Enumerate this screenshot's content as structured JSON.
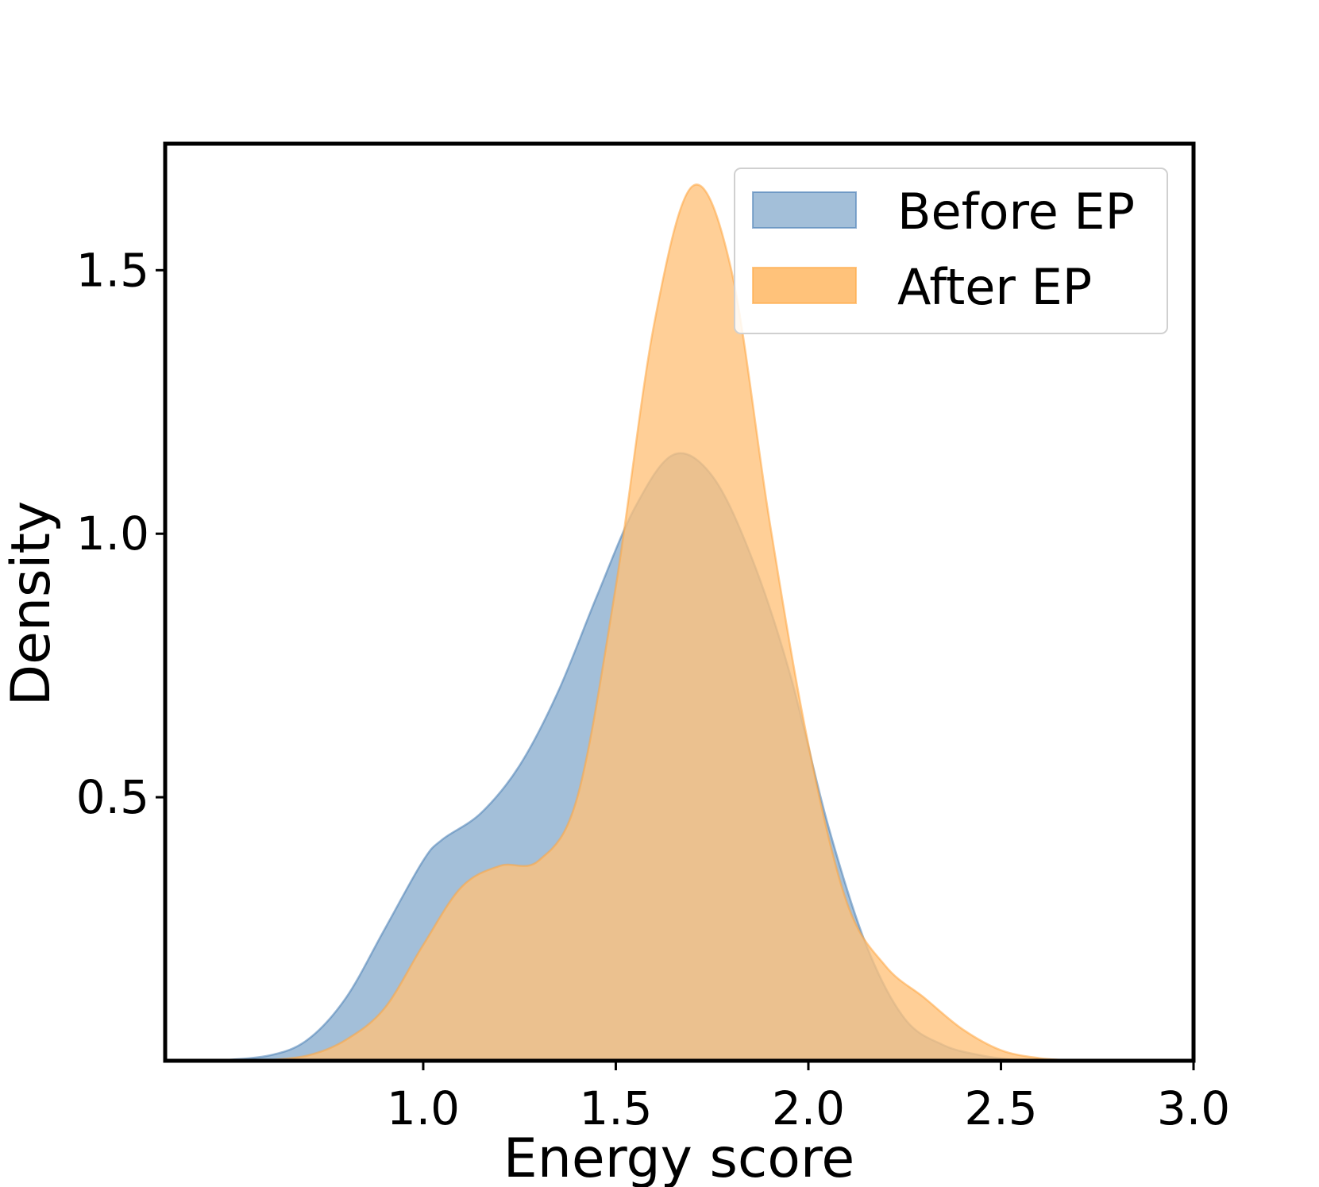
{
  "chart_data": {
    "type": "area",
    "xlabel": "Energy score",
    "ylabel": "Density",
    "xlim": [
      0.33,
      3.0
    ],
    "ylim": [
      0.0,
      1.74
    ],
    "xticks": [
      1.0,
      1.5,
      2.0,
      2.5,
      3.0
    ],
    "xtick_labels": [
      "1.0",
      "1.5",
      "2.0",
      "2.5",
      "3.0"
    ],
    "yticks": [
      0.5,
      1.0,
      1.5
    ],
    "ytick_labels": [
      "0.5",
      "1.0",
      "1.5"
    ],
    "legend_position": "top-right",
    "grid": false,
    "series": [
      {
        "name": "Before EP",
        "color": "#4a7fb5",
        "fill_color": "#a3bfd9",
        "points": [
          [
            0.46,
            0.0
          ],
          [
            0.6,
            0.01
          ],
          [
            0.7,
            0.04
          ],
          [
            0.8,
            0.12
          ],
          [
            0.9,
            0.25
          ],
          [
            1.0,
            0.38
          ],
          [
            1.05,
            0.42
          ],
          [
            1.15,
            0.47
          ],
          [
            1.25,
            0.56
          ],
          [
            1.35,
            0.7
          ],
          [
            1.45,
            0.88
          ],
          [
            1.55,
            1.05
          ],
          [
            1.65,
            1.15
          ],
          [
            1.75,
            1.11
          ],
          [
            1.85,
            0.96
          ],
          [
            1.95,
            0.74
          ],
          [
            2.05,
            0.45
          ],
          [
            2.15,
            0.22
          ],
          [
            2.25,
            0.08
          ],
          [
            2.35,
            0.03
          ],
          [
            2.45,
            0.01
          ],
          [
            2.55,
            0.0
          ]
        ]
      },
      {
        "name": "After EP",
        "color": "#ffa640",
        "fill_color": "#ffc27a",
        "points": [
          [
            0.58,
            0.0
          ],
          [
            0.7,
            0.01
          ],
          [
            0.8,
            0.04
          ],
          [
            0.9,
            0.1
          ],
          [
            1.0,
            0.22
          ],
          [
            1.1,
            0.33
          ],
          [
            1.2,
            0.37
          ],
          [
            1.3,
            0.38
          ],
          [
            1.4,
            0.5
          ],
          [
            1.5,
            0.9
          ],
          [
            1.6,
            1.4
          ],
          [
            1.7,
            1.66
          ],
          [
            1.8,
            1.5
          ],
          [
            1.9,
            1.02
          ],
          [
            2.0,
            0.6
          ],
          [
            2.1,
            0.3
          ],
          [
            2.2,
            0.18
          ],
          [
            2.3,
            0.12
          ],
          [
            2.4,
            0.06
          ],
          [
            2.5,
            0.02
          ],
          [
            2.6,
            0.005
          ],
          [
            2.7,
            0.0
          ]
        ]
      }
    ]
  }
}
